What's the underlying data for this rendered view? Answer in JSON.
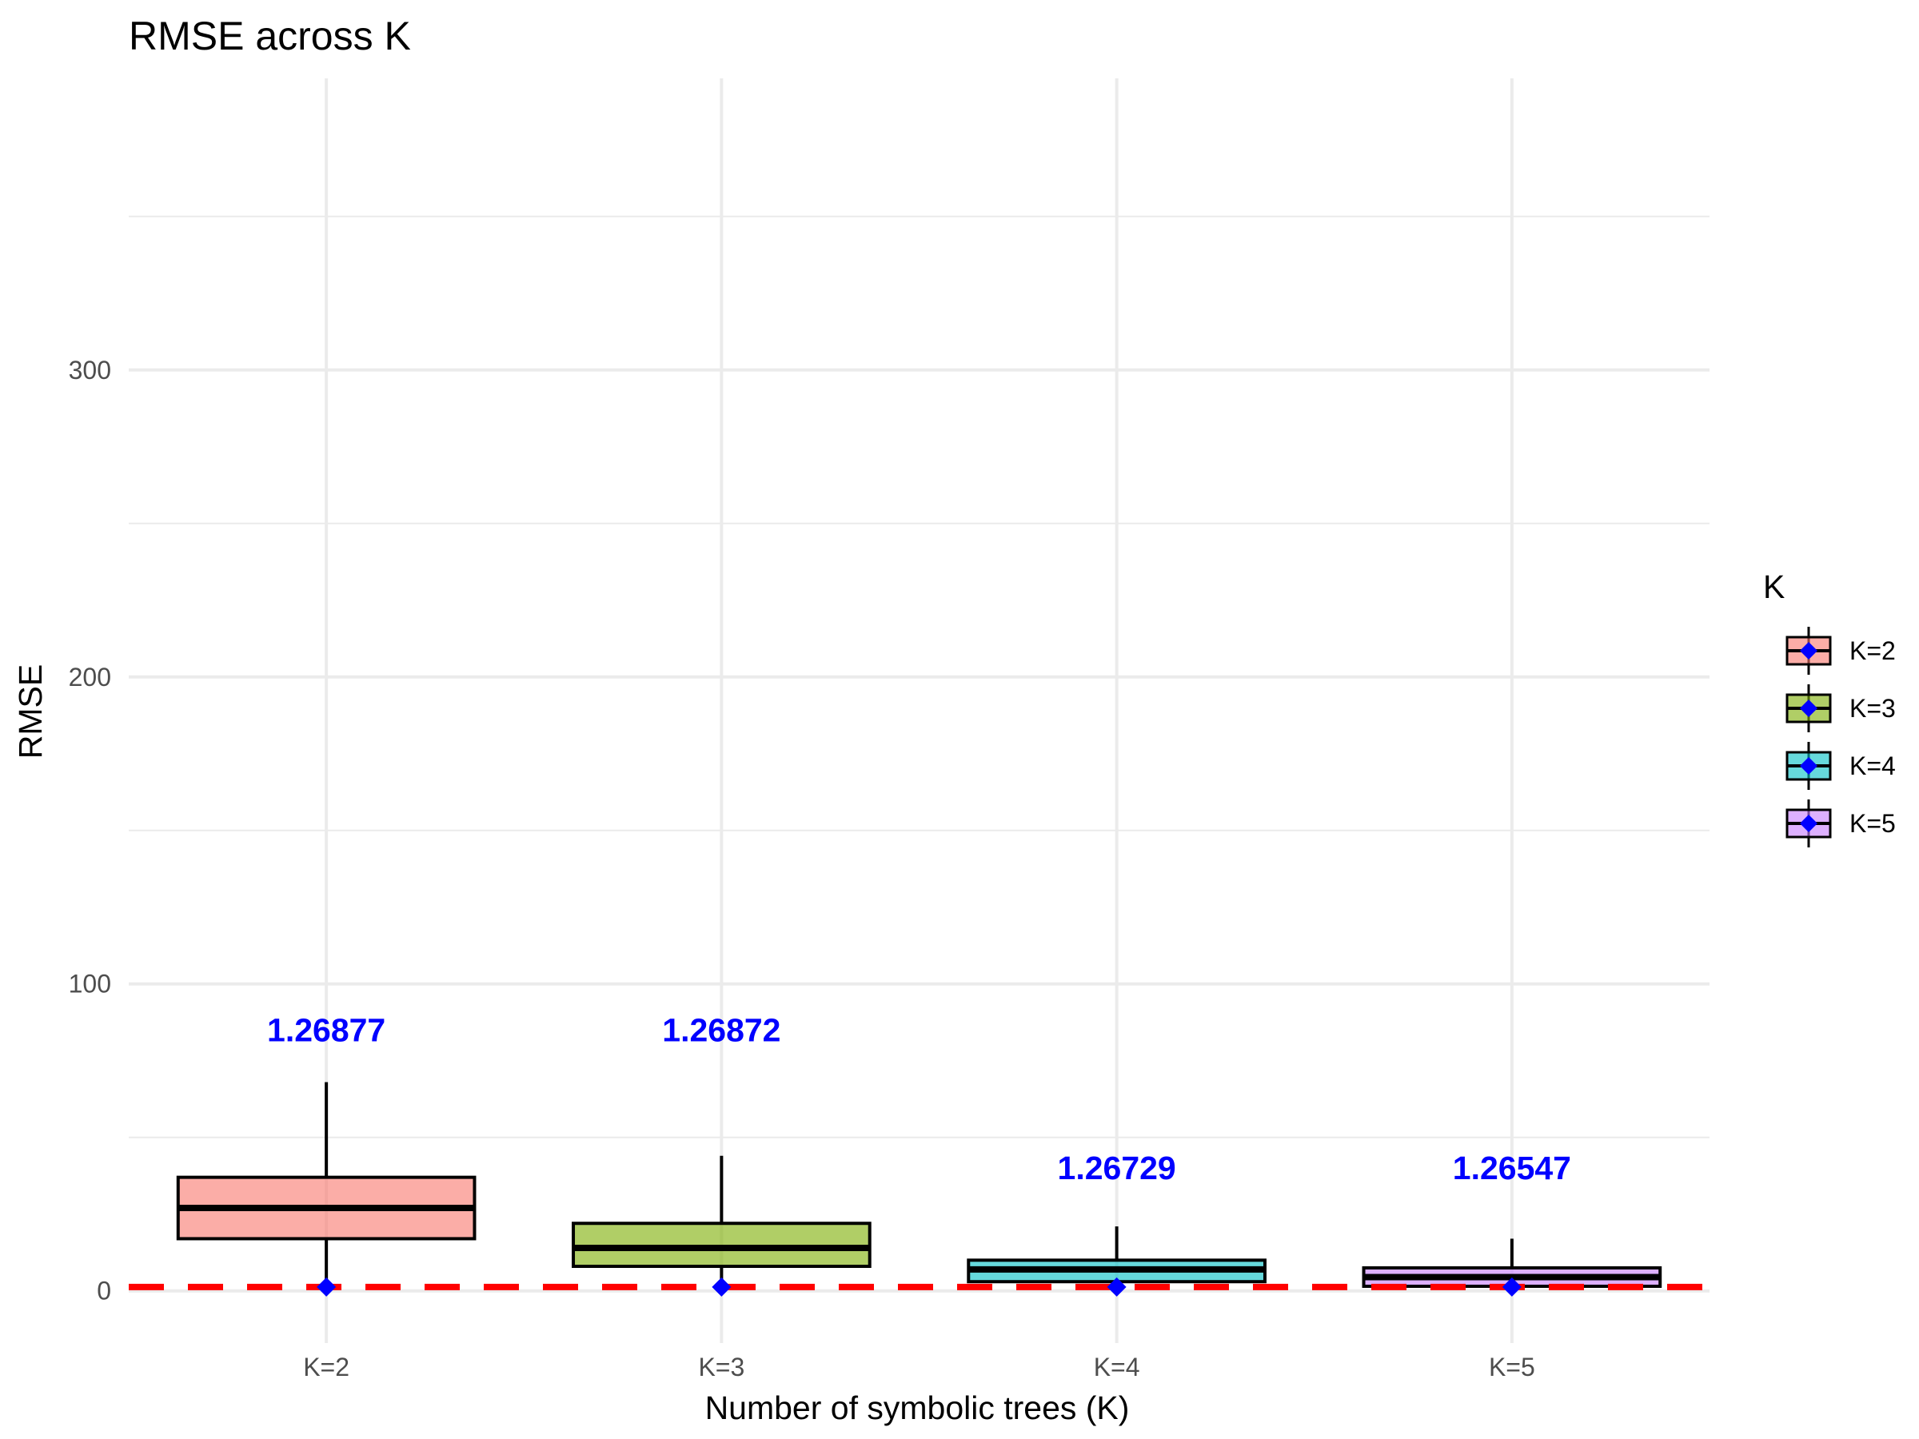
{
  "chart_data": {
    "type": "box",
    "title": "RMSE across K",
    "xlabel": "Number of symbolic trees (K)",
    "ylabel": "RMSE",
    "categories": [
      "K=2",
      "K=3",
      "K=4",
      "K=5"
    ],
    "ylim": [
      -17,
      395
    ],
    "yticks": [
      0,
      100,
      200,
      300
    ],
    "grid": true,
    "boxes": [
      {
        "category": "K=2",
        "whisker_low": 1.27,
        "q1": 17,
        "median": 27,
        "q3": 37,
        "whisker_high": 68,
        "mean": 1.26877,
        "fill": "#F8766D"
      },
      {
        "category": "K=3",
        "whisker_low": 1.27,
        "q1": 8,
        "median": 14,
        "q3": 22,
        "whisker_high": 44,
        "mean": 1.26872,
        "fill": "#7CAE00"
      },
      {
        "category": "K=4",
        "whisker_low": 1.27,
        "q1": 3,
        "median": 7,
        "q3": 10,
        "whisker_high": 21,
        "mean": 1.26729,
        "fill": "#00BFC4"
      },
      {
        "category": "K=5",
        "whisker_low": 1.27,
        "q1": 1.5,
        "median": 4.5,
        "q3": 7.5,
        "whisker_high": 17,
        "mean": 1.26547,
        "fill": "#C77CFF"
      }
    ],
    "mean_labels": [
      {
        "category": "K=2",
        "text": "1.26877",
        "y": 85
      },
      {
        "category": "K=3",
        "text": "1.26872",
        "y": 85
      },
      {
        "category": "K=4",
        "text": "1.26729",
        "y": 40
      },
      {
        "category": "K=5",
        "text": "1.26547",
        "y": 40
      }
    ],
    "reference_line": {
      "y": 1.27,
      "color": "#FF0000",
      "style": "dashed"
    },
    "mean_marker": {
      "shape": "diamond",
      "color": "#0000FF"
    },
    "label_color": "#0000FF",
    "legend": {
      "title": "K",
      "position": "right",
      "entries": [
        {
          "label": "K=2",
          "fill": "#F8766D"
        },
        {
          "label": "K=3",
          "fill": "#7CAE00"
        },
        {
          "label": "K=4",
          "fill": "#00BFC4"
        },
        {
          "label": "K=5",
          "fill": "#C77CFF"
        }
      ]
    }
  }
}
